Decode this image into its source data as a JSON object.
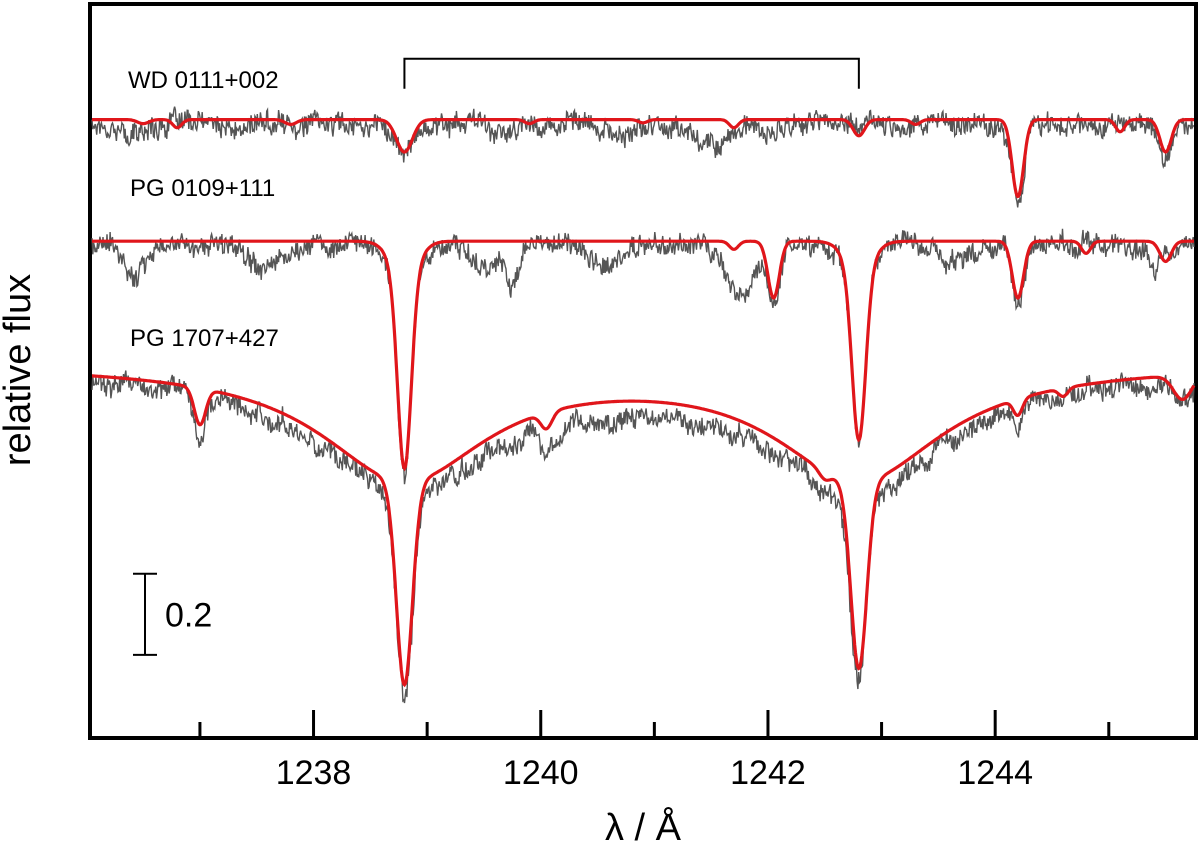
{
  "chart_data": {
    "type": "line",
    "title": "",
    "xlabel": "λ / Å",
    "ylabel": "relative flux",
    "xlim": [
      1236.05,
      1245.75
    ],
    "x_ticks": [
      1238,
      1240,
      1242,
      1244
    ],
    "x_tick_labels": [
      "1238",
      "1240",
      "1242",
      "1244"
    ],
    "x_minor_ticks": [
      1237,
      1239,
      1241,
      1243,
      1245
    ],
    "ylim": [
      0,
      1.8
    ],
    "grid": false,
    "legend": "none",
    "scale_bar": {
      "label": "0.2",
      "value": 0.2,
      "y_bottom": 0.2
    },
    "bracket": {
      "x_start": 1238.8,
      "x_end": 1242.8,
      "y": 1.67
    },
    "colors": {
      "observed": "#555555",
      "model": "#e0161b"
    },
    "series": [
      {
        "label": "WD 0111+002",
        "offset": 1.52,
        "model_lines": [
          {
            "center": 1236.8,
            "depth": 0.02,
            "width": 0.04
          },
          {
            "center": 1236.5,
            "depth": 0.01,
            "width": 0.05
          },
          {
            "center": 1237.8,
            "depth": 0.012,
            "width": 0.05
          },
          {
            "center": 1238.8,
            "depth": 0.08,
            "width": 0.07
          },
          {
            "center": 1239.9,
            "depth": 0.01,
            "width": 0.04
          },
          {
            "center": 1240.9,
            "depth": 0.008,
            "width": 0.04
          },
          {
            "center": 1241.7,
            "depth": 0.02,
            "width": 0.04
          },
          {
            "center": 1242.8,
            "depth": 0.04,
            "width": 0.05
          },
          {
            "center": 1243.3,
            "depth": 0.012,
            "width": 0.04
          },
          {
            "center": 1244.2,
            "depth": 0.19,
            "width": 0.05
          },
          {
            "center": 1245.1,
            "depth": 0.03,
            "width": 0.04
          },
          {
            "center": 1245.5,
            "depth": 0.08,
            "width": 0.05
          }
        ],
        "obs_lines": [
          {
            "center": 1236.4,
            "depth": 0.03,
            "width": 0.1
          },
          {
            "center": 1237.3,
            "depth": 0.02,
            "width": 0.1
          },
          {
            "center": 1238.8,
            "depth": 0.07,
            "width": 0.08
          },
          {
            "center": 1239.7,
            "depth": 0.03,
            "width": 0.1
          },
          {
            "center": 1240.7,
            "depth": 0.03,
            "width": 0.15
          },
          {
            "center": 1241.5,
            "depth": 0.05,
            "width": 0.15
          },
          {
            "center": 1242.0,
            "depth": 0.03,
            "width": 0.1
          },
          {
            "center": 1244.2,
            "depth": 0.2,
            "width": 0.05
          },
          {
            "center": 1245.5,
            "depth": 0.08,
            "width": 0.06
          }
        ]
      },
      {
        "label": "PG 0109+111",
        "offset": 1.22,
        "model_lines": [
          {
            "center": 1238.8,
            "depth": 0.48,
            "width": 0.06,
            "wing": 0.12,
            "wing_depth": 0.08
          },
          {
            "center": 1241.7,
            "depth": 0.02,
            "width": 0.04
          },
          {
            "center": 1242.05,
            "depth": 0.14,
            "width": 0.05
          },
          {
            "center": 1242.8,
            "depth": 0.42,
            "width": 0.06,
            "wing": 0.12,
            "wing_depth": 0.07
          },
          {
            "center": 1244.2,
            "depth": 0.14,
            "width": 0.05
          },
          {
            "center": 1244.8,
            "depth": 0.03,
            "width": 0.04
          },
          {
            "center": 1245.5,
            "depth": 0.05,
            "width": 0.05
          }
        ],
        "obs_lines": [
          {
            "center": 1236.4,
            "depth": 0.08,
            "width": 0.08
          },
          {
            "center": 1237.6,
            "depth": 0.04,
            "width": 0.15
          },
          {
            "center": 1238.8,
            "depth": 0.48,
            "width": 0.06,
            "wing": 0.12,
            "wing_depth": 0.08
          },
          {
            "center": 1239.5,
            "depth": 0.05,
            "width": 0.1
          },
          {
            "center": 1239.75,
            "depth": 0.1,
            "width": 0.06
          },
          {
            "center": 1240.6,
            "depth": 0.05,
            "width": 0.12
          },
          {
            "center": 1241.75,
            "depth": 0.13,
            "width": 0.12
          },
          {
            "center": 1242.05,
            "depth": 0.14,
            "width": 0.05
          },
          {
            "center": 1242.8,
            "depth": 0.42,
            "width": 0.06,
            "wing": 0.12,
            "wing_depth": 0.07
          },
          {
            "center": 1243.6,
            "depth": 0.04,
            "width": 0.12
          },
          {
            "center": 1244.2,
            "depth": 0.14,
            "width": 0.05
          },
          {
            "center": 1245.4,
            "depth": 0.05,
            "width": 0.1
          }
        ]
      },
      {
        "label": "PG 1707+427",
        "offset": 0.92,
        "broad": [
          {
            "center": 1238.8,
            "depth": 0.28,
            "width": 0.9
          },
          {
            "center": 1242.8,
            "depth": 0.28,
            "width": 0.9
          }
        ],
        "model_lines": [
          {
            "center": 1237.0,
            "depth": 0.09,
            "width": 0.05
          },
          {
            "center": 1238.8,
            "depth": 0.5,
            "width": 0.07
          },
          {
            "center": 1240.05,
            "depth": 0.04,
            "width": 0.05
          },
          {
            "center": 1242.5,
            "depth": 0.02,
            "width": 0.05
          },
          {
            "center": 1242.8,
            "depth": 0.46,
            "width": 0.07
          },
          {
            "center": 1244.2,
            "depth": 0.04,
            "width": 0.04
          },
          {
            "center": 1244.6,
            "depth": 0.02,
            "width": 0.04
          },
          {
            "center": 1245.65,
            "depth": 0.06,
            "width": 0.08
          }
        ],
        "obs_lines": [
          {
            "center": 1237.0,
            "depth": 0.09,
            "width": 0.05
          },
          {
            "center": 1238.8,
            "depth": 0.5,
            "width": 0.07
          },
          {
            "center": 1240.05,
            "depth": 0.04,
            "width": 0.05
          },
          {
            "center": 1242.5,
            "depth": 0.02,
            "width": 0.05
          },
          {
            "center": 1242.8,
            "depth": 0.46,
            "width": 0.07
          },
          {
            "center": 1244.2,
            "depth": 0.04,
            "width": 0.04
          },
          {
            "center": 1244.6,
            "depth": 0.02,
            "width": 0.04
          },
          {
            "center": 1245.65,
            "depth": 0.06,
            "width": 0.08
          }
        ]
      }
    ]
  }
}
